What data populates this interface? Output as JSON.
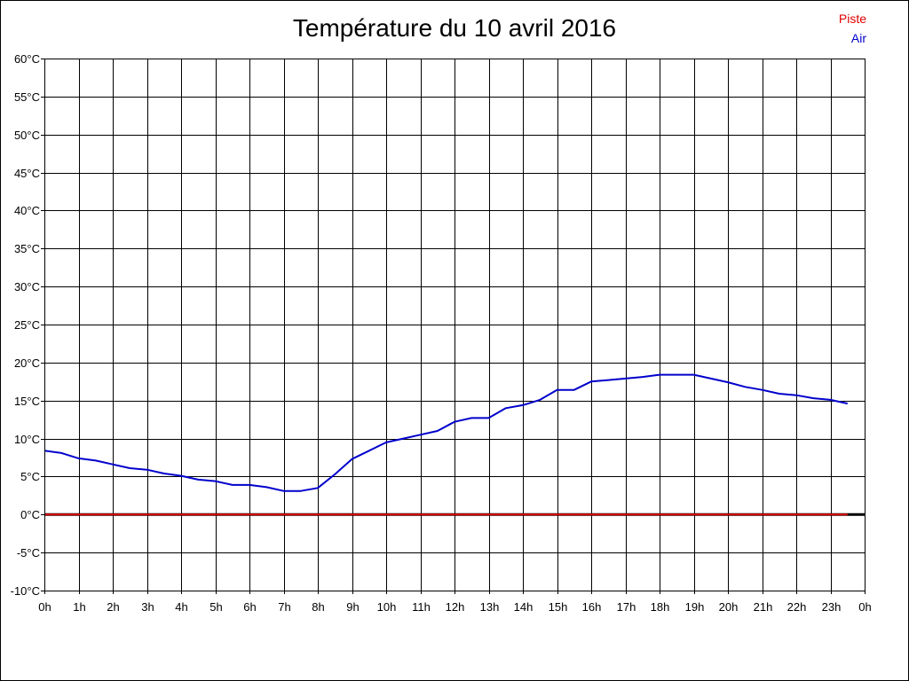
{
  "chart_data": {
    "type": "line",
    "title": "Température du 10 avril 2016",
    "legend": [
      {
        "name": "Piste",
        "color": "#e00000"
      },
      {
        "name": "Air",
        "color": "#0000cc"
      }
    ],
    "legend_position": "top-right",
    "grid": true,
    "xlim": [
      0,
      24
    ],
    "ylim": [
      -10,
      60
    ],
    "x_ticks": [
      "0h",
      "1h",
      "2h",
      "3h",
      "4h",
      "5h",
      "6h",
      "7h",
      "8h",
      "9h",
      "10h",
      "11h",
      "12h",
      "13h",
      "14h",
      "15h",
      "16h",
      "17h",
      "18h",
      "19h",
      "20h",
      "21h",
      "22h",
      "23h",
      "0h"
    ],
    "y_ticks": [
      "60°C",
      "55°C",
      "50°C",
      "45°C",
      "40°C",
      "35°C",
      "30°C",
      "25°C",
      "20°C",
      "15°C",
      "10°C",
      "5°C",
      "0°C",
      "-5°C",
      "-10°C"
    ],
    "series": [
      {
        "name": "Air",
        "color": "#0000cc",
        "x": [
          0,
          0.5,
          1,
          1.5,
          2,
          2.5,
          3,
          3.5,
          4,
          4.5,
          5,
          5.5,
          6,
          6.5,
          7,
          7.5,
          8,
          8.5,
          9,
          9.5,
          10,
          10.5,
          11,
          11.5,
          12,
          12.5,
          13,
          13.5,
          14,
          14.5,
          15,
          15.5,
          16,
          16.5,
          17,
          17.5,
          18,
          18.5,
          19,
          19.5,
          20,
          20.5,
          21,
          21.5,
          22,
          22.5,
          23,
          23.5
        ],
        "values": [
          8.4,
          8.1,
          7.4,
          7.1,
          6.6,
          6.1,
          5.9,
          5.4,
          5.1,
          4.6,
          4.4,
          3.9,
          3.9,
          3.6,
          3.1,
          3.1,
          3.5,
          5.3,
          7.3,
          8.4,
          9.5,
          10,
          10.5,
          11,
          12.2,
          12.7,
          12.7,
          14,
          14.4,
          15.1,
          16.4,
          16.4,
          17.5,
          17.7,
          17.9,
          18.1,
          18.4,
          18.4,
          18.4,
          17.9,
          17.4,
          16.8,
          16.4,
          15.9,
          15.7,
          15.3,
          15.1,
          14.6
        ]
      },
      {
        "name": "Piste",
        "color": "#e00000",
        "x": [
          0,
          23.5
        ],
        "values": [
          0,
          0
        ]
      }
    ]
  }
}
